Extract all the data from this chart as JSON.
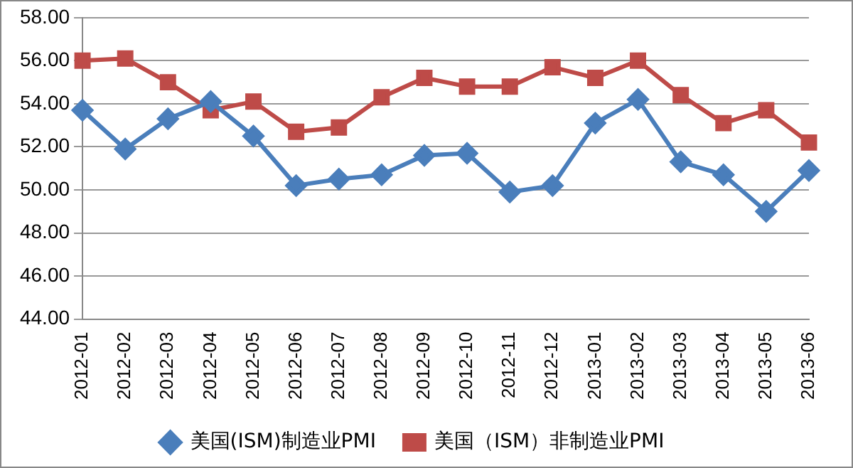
{
  "chart_data": {
    "type": "line",
    "categories": [
      "2012-01",
      "2012-02",
      "2012-03",
      "2012-04",
      "2012-05",
      "2012-06",
      "2012-07",
      "2012-08",
      "2012-09",
      "2012-10",
      "2012-11",
      "2012-12",
      "2013-01",
      "2013-02",
      "2013-03",
      "2013-04",
      "2013-05",
      "2013-06"
    ],
    "series": [
      {
        "name": "美国(ISM)制造业PMI",
        "color": "#4a7ebb",
        "marker": "diamond",
        "values": [
          53.7,
          51.9,
          53.3,
          54.1,
          52.5,
          50.2,
          50.5,
          50.7,
          51.6,
          51.7,
          49.9,
          50.2,
          53.1,
          54.2,
          51.3,
          50.7,
          49.0,
          50.9
        ]
      },
      {
        "name": "美国（ISM）非制造业PMI",
        "color": "#be4b48",
        "marker": "square",
        "values": [
          56.0,
          56.1,
          55.0,
          53.7,
          54.1,
          52.7,
          52.9,
          54.3,
          55.2,
          54.8,
          54.8,
          55.7,
          55.2,
          56.0,
          54.4,
          53.1,
          53.7,
          52.2
        ]
      }
    ],
    "ylim": [
      44,
      58
    ],
    "yticks": [
      {
        "value": 44,
        "label": "44.00"
      },
      {
        "value": 46,
        "label": "46.00"
      },
      {
        "value": 48,
        "label": "48.00"
      },
      {
        "value": 50,
        "label": "50.00"
      },
      {
        "value": 52,
        "label": "52.00"
      },
      {
        "value": 54,
        "label": "54.00"
      },
      {
        "value": 56,
        "label": "56.00"
      },
      {
        "value": 58,
        "label": "58.00"
      }
    ],
    "grid": "y",
    "legend": "bottom",
    "line_style": "solid"
  }
}
